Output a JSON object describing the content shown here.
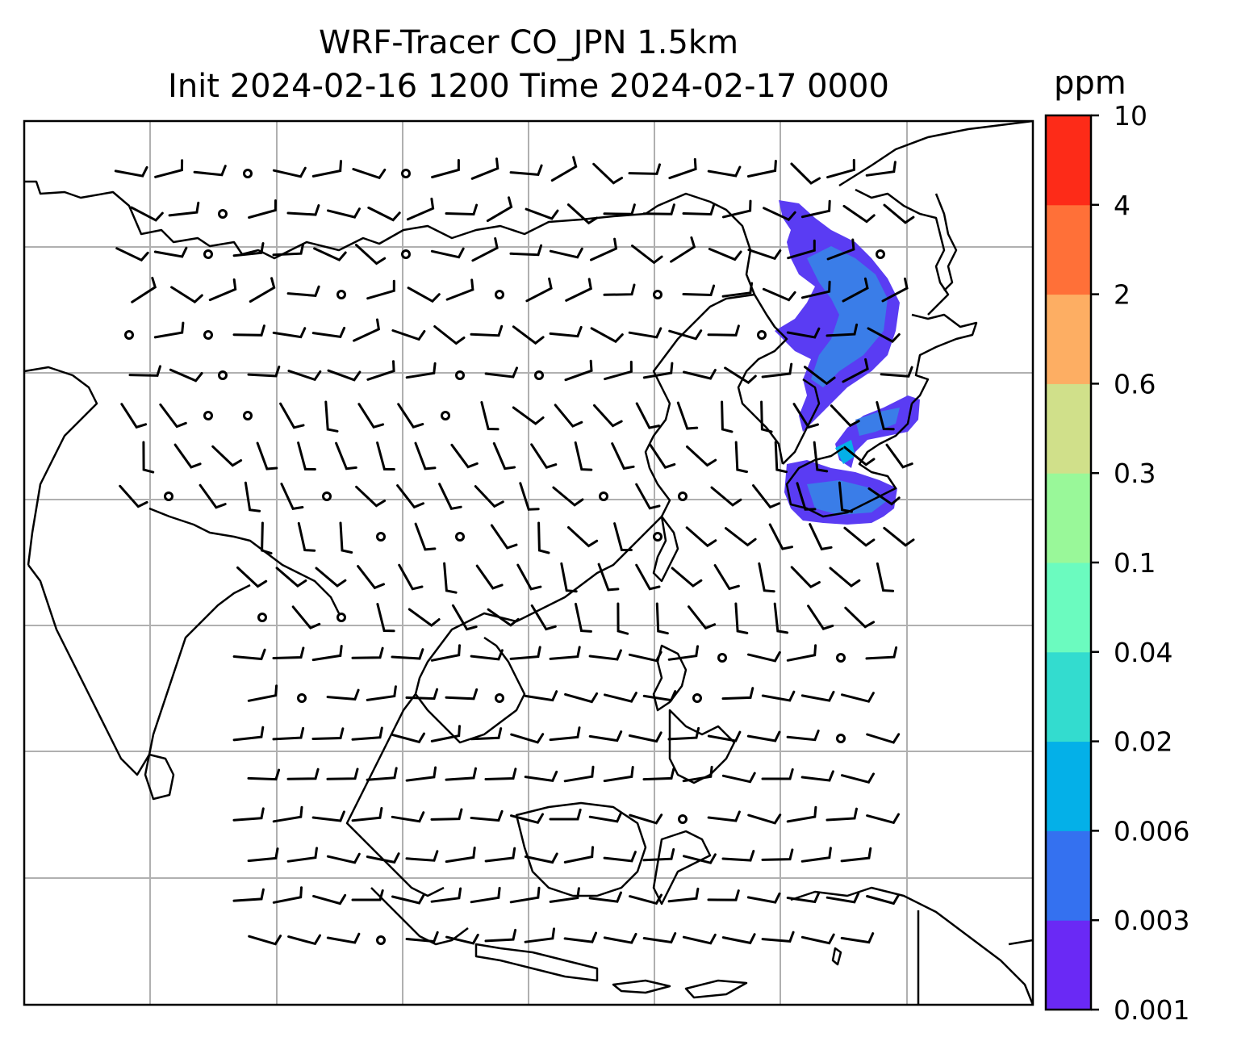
{
  "title": {
    "line1": "WRF-Tracer CO_JPN 1.5km",
    "line2": "Init 2024-02-16 1200 Time 2024-02-17 0000"
  },
  "colorbar": {
    "unit": "ppm",
    "levels": [
      "0.001",
      "0.003",
      "0.006",
      "0.02",
      "0.04",
      "0.1",
      "0.3",
      "0.6",
      "2",
      "4",
      "10"
    ],
    "colors": [
      "#6a29f5",
      "#3471f0",
      "#04b0e8",
      "#33dccf",
      "#6bfbbf",
      "#99f899",
      "#d0e08a",
      "#fdae63",
      "#ff7038",
      "#fd2b18"
    ]
  },
  "map": {
    "grid_lines": true,
    "tracer_fill_color": "#5a3cf3",
    "tracer_highlight_color": "#3a7de8",
    "wind_barbs": true,
    "coastlines": true
  }
}
